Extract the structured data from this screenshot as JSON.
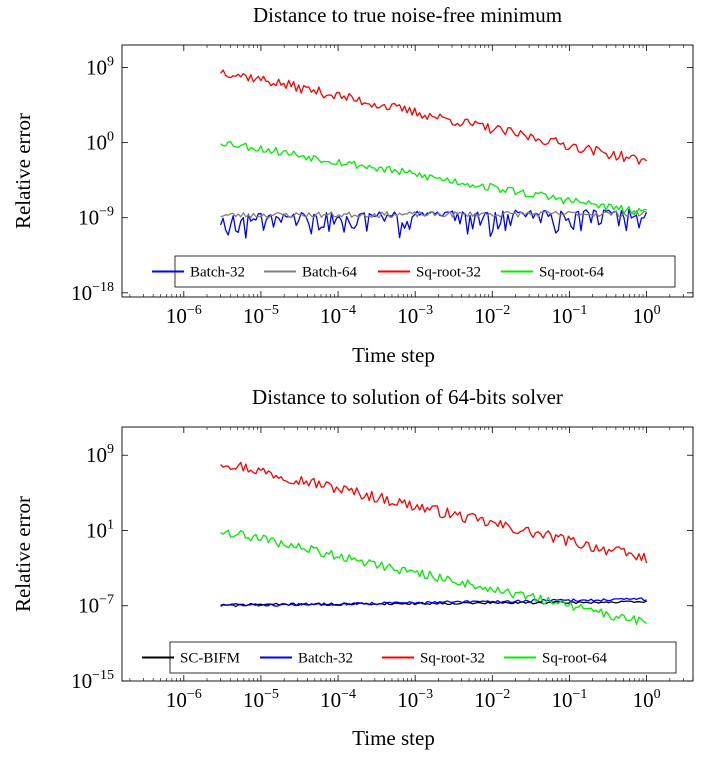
{
  "chart_data": [
    {
      "type": "line",
      "title": "Distance to true noise-free minimum",
      "xlabel": "Time step",
      "ylabel": "Relative error",
      "xscale": "log",
      "yscale": "log",
      "xlim": [
        1.58e-07,
        4.0
      ],
      "ylim": [
        3.16e-19,
        500000000000.0
      ],
      "xticks": [
        {
          "value": 1e-06,
          "base": "10",
          "exp": "−6"
        },
        {
          "value": 1e-05,
          "base": "10",
          "exp": "−5"
        },
        {
          "value": 0.0001,
          "base": "10",
          "exp": "−4"
        },
        {
          "value": 0.001,
          "base": "10",
          "exp": "−3"
        },
        {
          "value": 0.01,
          "base": "10",
          "exp": "−2"
        },
        {
          "value": 0.1,
          "base": "10",
          "exp": "−1"
        },
        {
          "value": 1,
          "base": "10",
          "exp": "0"
        }
      ],
      "yticks": [
        {
          "value": 1e-18,
          "base": "10",
          "exp": "−18"
        },
        {
          "value": 1e-09,
          "base": "10",
          "exp": "−9"
        },
        {
          "value": 1,
          "base": "10",
          "exp": "0"
        },
        {
          "value": 1000000000.0,
          "base": "10",
          "exp": "9"
        }
      ],
      "grid": false,
      "legend_position": "bottom",
      "series": [
        {
          "name": "Batch-32",
          "color": "#0000ff",
          "x_range": [
            3e-06,
            1
          ],
          "start": -8.8,
          "end": -8.2,
          "noise": 0.3,
          "dips": 2.6,
          "dip_prob": 0.5,
          "seed": 11
        },
        {
          "name": "Batch-64",
          "color": "#808080",
          "x_range": [
            3e-06,
            1
          ],
          "start": -8.7,
          "end": -8.5,
          "noise": 0.35,
          "dips": 0,
          "dip_prob": 0,
          "seed": 23
        },
        {
          "name": "Sq-root-32",
          "color": "#ff0000",
          "x_range": [
            3e-06,
            1
          ],
          "start": 8.6,
          "end": -2.3,
          "noise": 0.6,
          "dips": 0,
          "dip_prob": 0,
          "seed": 37
        },
        {
          "name": "Sq-root-64",
          "color": "#00ee00",
          "x_range": [
            3e-06,
            1
          ],
          "start": 0.1,
          "end": -8.5,
          "noise": 0.5,
          "dips": 0,
          "dip_prob": 0,
          "seed": 53
        }
      ]
    },
    {
      "type": "line",
      "title": "Distance to solution of 64-bits solver",
      "xlabel": "Time step",
      "ylabel": "Relative error",
      "xscale": "log",
      "yscale": "log",
      "xlim": [
        1.58e-07,
        4.0
      ],
      "ylim": [
        1e-15,
        1000000000000.0
      ],
      "xticks": [
        {
          "value": 1e-06,
          "base": "10",
          "exp": "−6"
        },
        {
          "value": 1e-05,
          "base": "10",
          "exp": "−5"
        },
        {
          "value": 0.0001,
          "base": "10",
          "exp": "−4"
        },
        {
          "value": 0.001,
          "base": "10",
          "exp": "−3"
        },
        {
          "value": 0.01,
          "base": "10",
          "exp": "−2"
        },
        {
          "value": 0.1,
          "base": "10",
          "exp": "−1"
        },
        {
          "value": 1,
          "base": "10",
          "exp": "0"
        }
      ],
      "yticks": [
        {
          "value": 1e-15,
          "base": "10",
          "exp": "−15"
        },
        {
          "value": 1e-07,
          "base": "10",
          "exp": "−7"
        },
        {
          "value": 10,
          "base": "10",
          "exp": "1"
        },
        {
          "value": 1000000000.0,
          "base": "10",
          "exp": "9"
        }
      ],
      "grid": false,
      "legend_position": "bottom",
      "series": [
        {
          "name": "SC-BIFM",
          "color": "#000000",
          "x_range": [
            3e-06,
            1
          ],
          "start": -6.9,
          "end": -6.6,
          "noise": 0.12,
          "dips": 0,
          "dip_prob": 0,
          "seed": 71
        },
        {
          "name": "Batch-32",
          "color": "#0000ff",
          "x_range": [
            3e-06,
            1
          ],
          "start": -7.0,
          "end": -6.3,
          "noise": 0.15,
          "dips": 0,
          "dip_prob": 0,
          "seed": 83
        },
        {
          "name": "Sq-root-32",
          "color": "#ff0000",
          "x_range": [
            3e-06,
            1
          ],
          "start": 8.3,
          "end": -2.0,
          "noise": 0.6,
          "dips": 0,
          "dip_prob": 0,
          "seed": 97
        },
        {
          "name": "Sq-root-64",
          "color": "#00ee00",
          "x_range": [
            3e-06,
            1
          ],
          "start": 1.0,
          "end": -8.8,
          "noise": 0.5,
          "dips": 0,
          "dip_prob": 0,
          "seed": 109
        }
      ]
    }
  ]
}
